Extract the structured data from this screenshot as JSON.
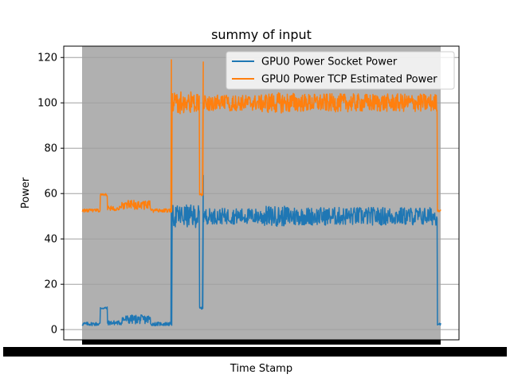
{
  "chart_data": {
    "type": "line",
    "title": "summy of input",
    "xlabel": "Time Stamp",
    "ylabel": "Power",
    "ylim": [
      -4.5,
      125
    ],
    "yticks": [
      0,
      20,
      40,
      60,
      80,
      100,
      120
    ],
    "grid": "y",
    "legend_position": "top-right",
    "shaded_region": {
      "color": "#b0b0b0"
    },
    "x_tick_labels": "dense overlapping timestamp labels (illegible)",
    "series": [
      {
        "name": "GPU0 Power Socket Power",
        "color": "#1f77b4",
        "segments": [
          {
            "x_start": 0.0,
            "x_end": 0.05,
            "center": 2.5,
            "noise": 0.8
          },
          {
            "x_start": 0.05,
            "x_end": 0.07,
            "center": 9.5,
            "noise": 0.5
          },
          {
            "x_start": 0.07,
            "x_end": 0.11,
            "center": 3.0,
            "noise": 1.0
          },
          {
            "x_start": 0.11,
            "x_end": 0.19,
            "center": 4.5,
            "noise": 2.0
          },
          {
            "x_start": 0.19,
            "x_end": 0.25,
            "center": 2.5,
            "noise": 0.8
          },
          {
            "x_start": 0.25,
            "x_end": 0.327,
            "center": 50,
            "noise": 5.0
          },
          {
            "x_start": 0.327,
            "x_end": 0.337,
            "center": 9.5,
            "noise": 0.5
          },
          {
            "x_start": 0.337,
            "x_end": 0.5,
            "center": 50,
            "noise": 3.5
          },
          {
            "x_start": 0.5,
            "x_end": 0.6,
            "center": 50,
            "noise": 4.5
          },
          {
            "x_start": 0.6,
            "x_end": 0.99,
            "center": 50,
            "noise": 4.0
          },
          {
            "x_start": 0.99,
            "x_end": 1.0,
            "center": 2.5,
            "noise": 0.5
          }
        ],
        "spikes": [
          {
            "x": 0.249,
            "y": 69
          },
          {
            "x": 0.338,
            "y": 68
          }
        ]
      },
      {
        "name": "GPU0 Power TCP Estimated Power",
        "color": "#ff7f0e",
        "segments": [
          {
            "x_start": 0.0,
            "x_end": 0.05,
            "center": 52.5,
            "noise": 0.8
          },
          {
            "x_start": 0.05,
            "x_end": 0.07,
            "center": 59.5,
            "noise": 0.5
          },
          {
            "x_start": 0.07,
            "x_end": 0.11,
            "center": 53.5,
            "noise": 1.0
          },
          {
            "x_start": 0.11,
            "x_end": 0.19,
            "center": 55,
            "noise": 2.0
          },
          {
            "x_start": 0.19,
            "x_end": 0.25,
            "center": 52.5,
            "noise": 0.8
          },
          {
            "x_start": 0.25,
            "x_end": 0.327,
            "center": 100,
            "noise": 5.0
          },
          {
            "x_start": 0.327,
            "x_end": 0.337,
            "center": 59.5,
            "noise": 0.5
          },
          {
            "x_start": 0.337,
            "x_end": 0.5,
            "center": 100,
            "noise": 3.5
          },
          {
            "x_start": 0.5,
            "x_end": 0.6,
            "center": 100,
            "noise": 4.5
          },
          {
            "x_start": 0.6,
            "x_end": 0.99,
            "center": 100,
            "noise": 4.0
          },
          {
            "x_start": 0.99,
            "x_end": 1.0,
            "center": 52.5,
            "noise": 0.5
          }
        ],
        "spikes": [
          {
            "x": 0.249,
            "y": 119
          },
          {
            "x": 0.338,
            "y": 118
          }
        ]
      }
    ]
  }
}
